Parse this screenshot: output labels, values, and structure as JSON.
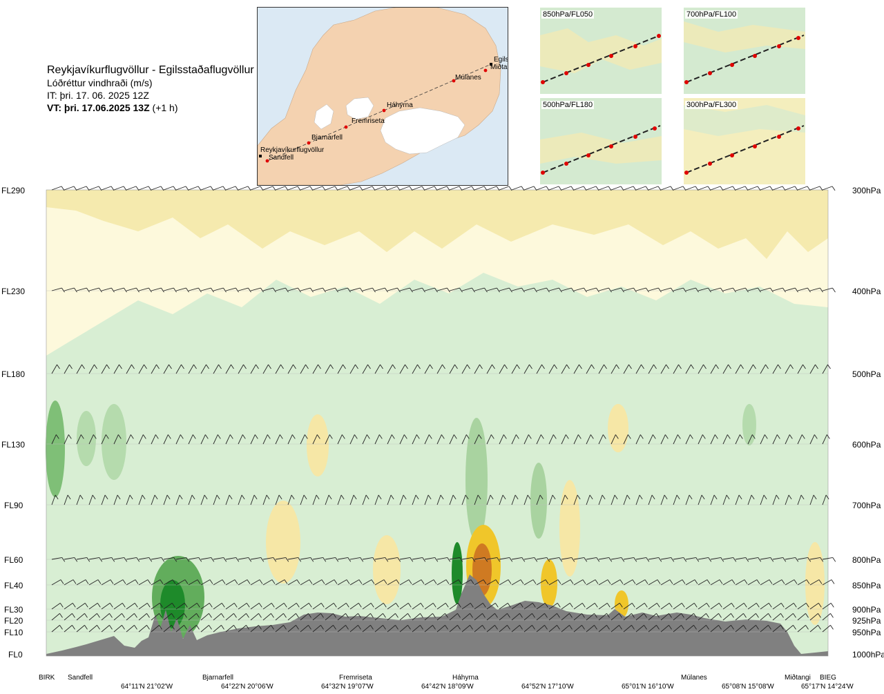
{
  "header": {
    "route": "Reykjavíkurflugvöllur - Egilsstaðaflugvöllur",
    "quantity": "Lóðréttur vindhraði (m/s)",
    "it": "IT: þri. 17. 06. 2025 12Z",
    "vt_bold": "VT: þri. 17.06.2025 13Z",
    "vt_suffix": " (+1 h)"
  },
  "map": {
    "places": [
      "Reykjavíkurflugvöllur",
      "Sandfell",
      "Bjarnarfell",
      "Fremriseta",
      "Háhyrna",
      "Múlanes",
      "Egilsstaðir",
      "Miðtangi"
    ],
    "colors": {
      "sea": "#dbe9f4",
      "land": "#f4d2b0",
      "ice": "#ffffff",
      "route_dot": "#e00000"
    }
  },
  "mini_maps": [
    {
      "label": "850hPa/FL050"
    },
    {
      "label": "700hPa/FL100"
    },
    {
      "label": "500hPa/FL180"
    },
    {
      "label": "300hPa/FL300"
    }
  ],
  "chart_data": {
    "type": "heatmap",
    "title": "Lóðréttur vindhraði (m/s)",
    "left_axis_ticks": [
      "FL290",
      "FL230",
      "FL180",
      "FL130",
      "FL90",
      "FL60",
      "FL40",
      "FL30",
      "FL20",
      "FL10",
      "FL0"
    ],
    "right_axis_ticks": [
      "300hPa",
      "400hPa",
      "500hPa",
      "600hPa",
      "700hPa",
      "800hPa",
      "850hPa",
      "900hPa",
      "925hPa",
      "950hPa",
      "1000hPa"
    ],
    "pressure_levels_hpa": [
      300,
      400,
      500,
      600,
      700,
      800,
      850,
      900,
      925,
      950,
      1000
    ],
    "locations": [
      "BIRK",
      "Sandfell",
      "Bjarnarfell",
      "Fremriseta",
      "Háhyrna",
      "Múlanes",
      "Miðtangi",
      "BIEG"
    ],
    "coordinates": [
      "64°11'N 21°02'W",
      "64°22'N 20°06'W",
      "64°32'N 19°07'W",
      "64°42'N 18°09'W",
      "64°52'N 17°10'W",
      "65°01'N 16°10'W",
      "65°08'N 15°08'W",
      "65°17'N 14°24'W"
    ],
    "colors": {
      "up_weak": "#cfe8c8",
      "up_moderate": "#a9d3a0",
      "up_strong": "#62ad5c",
      "up_very_strong": "#1e8a2a",
      "down_weak": "#fbf6d6",
      "down_moderate": "#f6e7a6",
      "down_strong": "#f0c62a",
      "down_very_strong": "#cf7a22",
      "terrain": "#808080"
    }
  }
}
